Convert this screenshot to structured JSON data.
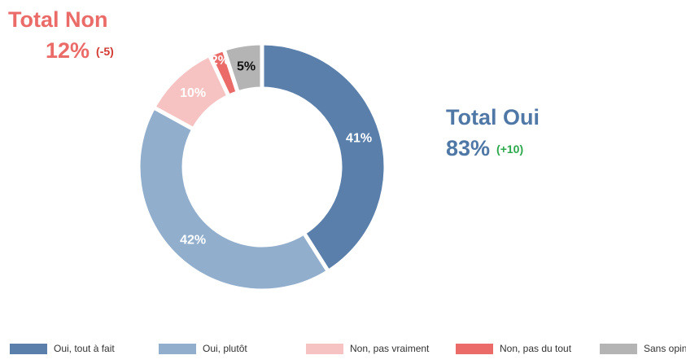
{
  "chart_data": {
    "type": "donut",
    "categories": [
      "Oui, tout à fait",
      "Oui, plutôt",
      "Non, pas vraiment",
      "Non, pas du tout",
      "Sans opinion"
    ],
    "values": [
      41,
      42,
      10,
      2,
      5
    ],
    "value_labels": [
      "41%",
      "42%",
      "10%",
      "2%",
      "5%"
    ],
    "colors": [
      "#5a7fab",
      "#91aecd",
      "#f6c3c2",
      "#ea6b68",
      "#b4b4b4"
    ],
    "label_colors": [
      "#ffffff",
      "#ffffff",
      "#ffffff",
      "#ffffff",
      "#111111"
    ],
    "annotations": [
      {
        "title": "Total Non",
        "total": "12%",
        "change": "(-5)",
        "color": "#ea6b68",
        "change_color": "#d23a32"
      },
      {
        "title": "Total Oui",
        "total": "83%",
        "change": "(+10)",
        "color": "#4f78a6",
        "change_color": "#2aa84a"
      }
    ],
    "legend": "bottom"
  }
}
